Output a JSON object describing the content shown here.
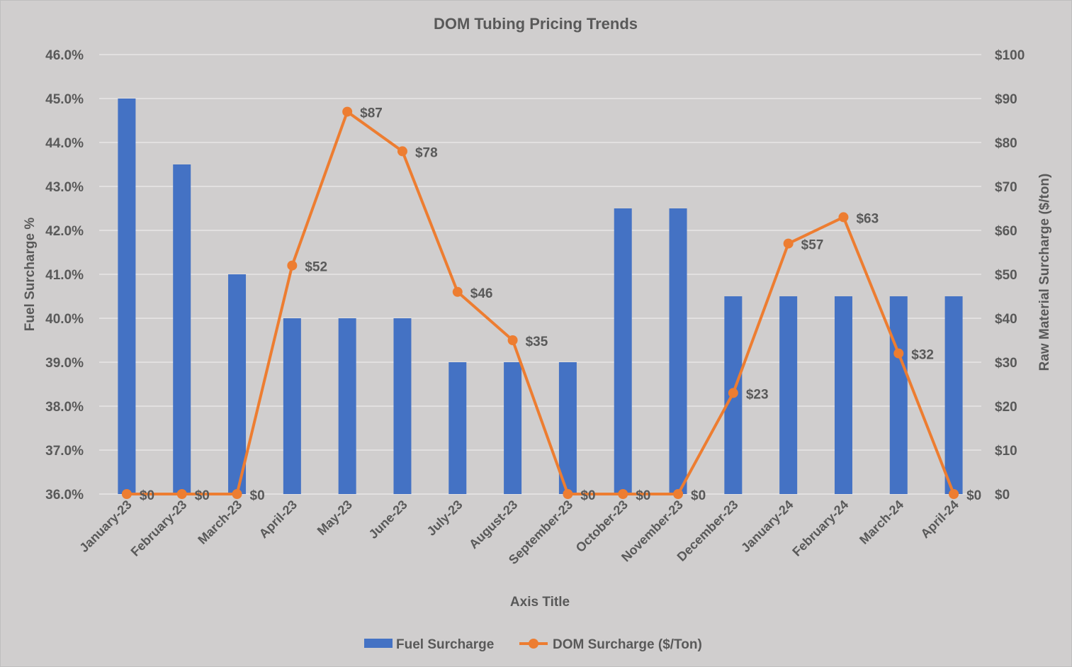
{
  "chart_data": {
    "type": "bar+line",
    "title": "DOM Tubing Pricing Trends",
    "xlabel": "Axis Title",
    "ylabel": "Fuel Surcharge %",
    "y2label": "Raw Material Surcharge ($/ton)",
    "ylim": [
      36.0,
      46.0
    ],
    "y2lim": [
      0,
      100
    ],
    "yticks": [
      "36.0%",
      "37.0%",
      "38.0%",
      "39.0%",
      "40.0%",
      "41.0%",
      "42.0%",
      "43.0%",
      "44.0%",
      "45.0%",
      "46.0%"
    ],
    "y2ticks": [
      "$0",
      "$10",
      "$20",
      "$30",
      "$40",
      "$50",
      "$60",
      "$70",
      "$80",
      "$90",
      "$100"
    ],
    "grid": true,
    "legend_position": "bottom",
    "categories": [
      "January-23",
      "February-23",
      "March-23",
      "April-23",
      "May-23",
      "June-23",
      "July-23",
      "August-23",
      "September-23",
      "October-23",
      "November-23",
      "December-23",
      "January-24",
      "February-24",
      "March-24",
      "April-24"
    ],
    "series": [
      {
        "name": "Fuel Surcharge",
        "type": "bar",
        "axis": "left",
        "color": "#4472c4",
        "values": [
          45.0,
          43.5,
          41.0,
          40.0,
          40.0,
          40.0,
          39.0,
          39.0,
          39.0,
          42.5,
          42.5,
          40.5,
          40.5,
          40.5,
          40.5,
          40.5
        ]
      },
      {
        "name": "DOM Surcharge ($/Ton)",
        "type": "line",
        "axis": "right",
        "color": "#ed7d31",
        "values": [
          0,
          0,
          0,
          52,
          87,
          78,
          46,
          35,
          0,
          0,
          0,
          23,
          57,
          63,
          32,
          0
        ],
        "labels": [
          "$0",
          "$0",
          "$0",
          "$52",
          "$87",
          "$78",
          "$46",
          "$35",
          "$0",
          "$0",
          "$0",
          "$23",
          "$57",
          "$63",
          "$32",
          "$0"
        ]
      }
    ]
  }
}
